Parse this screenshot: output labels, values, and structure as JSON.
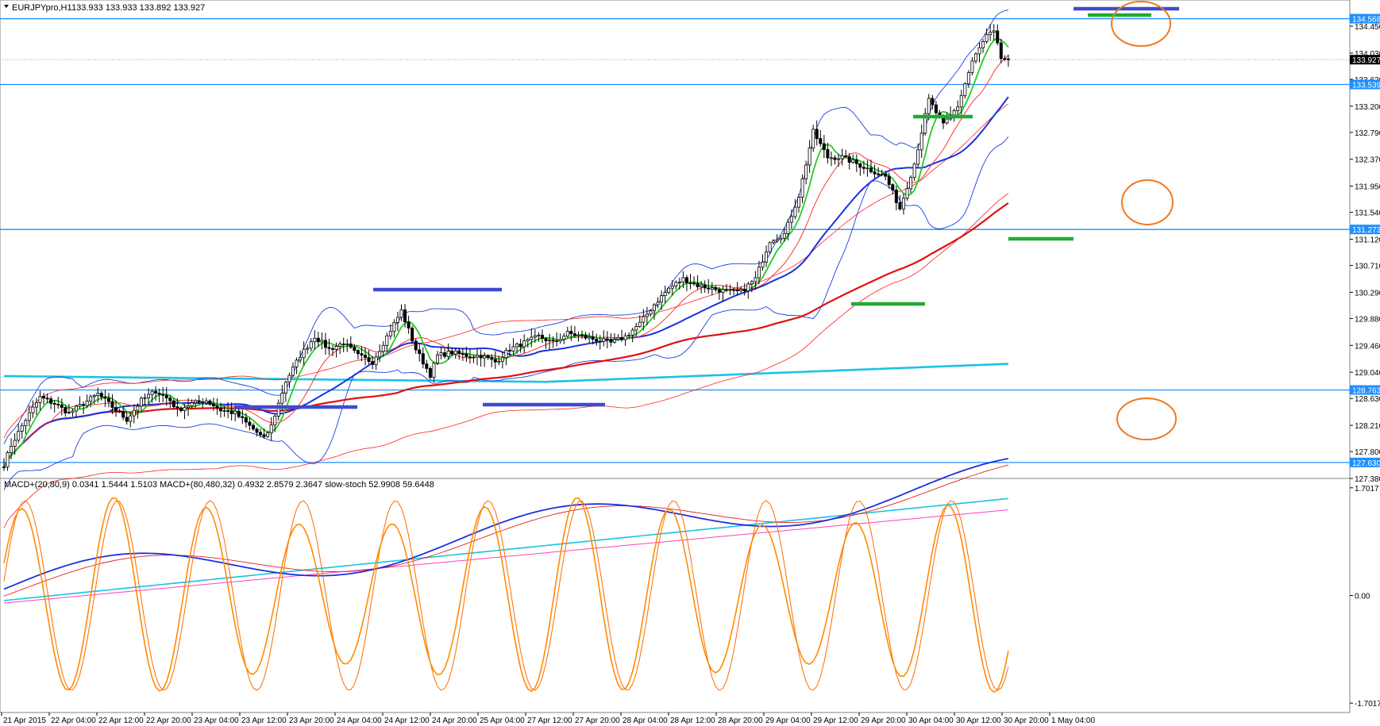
{
  "header": {
    "symbol": "EURJPYpro,H1",
    "ohlc": "133.933 133.933 133.892 133.927"
  },
  "indicator_header": "MACD+(20,80,9) 0.0341 1.5444 1.5103  MACD+(80,480,32) 0.4932 2.8579 2.3647  slow-stoch 52.9908 59.6448",
  "colors": {
    "up_candle": "#ffffff",
    "down_candle": "#000000",
    "hline": "#1e90ff",
    "bb": "#1a3fe0",
    "ma_fast": "#22cc22",
    "ma_red_thin": "#ff2020",
    "ma_blue": "#1a32e0",
    "ma_red": "#e01010",
    "ma_cyan": "#19c3e6",
    "env_red": "#ff2020",
    "stoch": "#ff8c00",
    "stoch_sig": "#ff6a00",
    "macd_blue": "#1f2fe0",
    "macd_red": "#e02020",
    "macd_cyan": "#19c3e6",
    "macd_magenta": "#ff40c0",
    "annot_green": "#22aa33",
    "annot_blue": "#3f4bd0",
    "annot_orange": "#f07820",
    "tag_bg": "#1e90ff",
    "current_tag_bg": "#000000"
  },
  "chart_data": [
    {
      "type": "candlestick",
      "title": "EURJPYpro,H1",
      "ylim": [
        127.38,
        134.86
      ],
      "price_axis_ticks": [
        "134.450",
        "134.030",
        "133.620",
        "133.200",
        "132.790",
        "132.370",
        "131.950",
        "131.540",
        "131.120",
        "130.710",
        "130.290",
        "129.880",
        "129.460",
        "129.040",
        "128.630",
        "128.210",
        "127.800",
        "127.380"
      ],
      "time_axis_labels": [
        "21 Apr 2015",
        "22 Apr 04:00",
        "22 Apr 12:00",
        "22 Apr 20:00",
        "23 Apr 04:00",
        "23 Apr 12:00",
        "23 Apr 20:00",
        "24 Apr 04:00",
        "24 Apr 12:00",
        "24 Apr 20:00",
        "25 Apr 04:00",
        "27 Apr 12:00",
        "27 Apr 20:00",
        "28 Apr 04:00",
        "28 Apr 12:00",
        "28 Apr 20:00",
        "29 Apr 04:00",
        "29 Apr 12:00",
        "29 Apr 20:00",
        "30 Apr 04:00",
        "30 Apr 12:00",
        "30 Apr 20:00",
        "1 May 04:00"
      ],
      "horizontal_levels": [
        "134.568",
        "133.539",
        "131.273",
        "128.763",
        "127.630"
      ],
      "current_price": "133.927",
      "close_anchors": [
        [
          0,
          127.6
        ],
        [
          2,
          127.9
        ],
        [
          6,
          128.3
        ],
        [
          10,
          128.65
        ],
        [
          14,
          128.55
        ],
        [
          18,
          128.4
        ],
        [
          22,
          128.55
        ],
        [
          26,
          128.7
        ],
        [
          30,
          128.5
        ],
        [
          34,
          128.3
        ],
        [
          38,
          128.6
        ],
        [
          42,
          128.75
        ],
        [
          46,
          128.6
        ],
        [
          48,
          128.45
        ],
        [
          52,
          128.55
        ],
        [
          56,
          128.6
        ],
        [
          60,
          128.45
        ],
        [
          64,
          128.4
        ],
        [
          68,
          128.2
        ],
        [
          72,
          128.0
        ],
        [
          74,
          128.2
        ],
        [
          78,
          128.9
        ],
        [
          82,
          129.3
        ],
        [
          86,
          129.6
        ],
        [
          90,
          129.4
        ],
        [
          94,
          129.5
        ],
        [
          98,
          129.3
        ],
        [
          102,
          129.2
        ],
        [
          106,
          129.6
        ],
        [
          110,
          130.0
        ],
        [
          114,
          129.4
        ],
        [
          118,
          129.0
        ],
        [
          120,
          129.3
        ],
        [
          124,
          129.35
        ],
        [
          128,
          129.3
        ],
        [
          132,
          129.3
        ],
        [
          136,
          129.2
        ],
        [
          140,
          129.4
        ],
        [
          144,
          129.5
        ],
        [
          148,
          129.6
        ],
        [
          152,
          129.5
        ],
        [
          156,
          129.65
        ],
        [
          160,
          129.6
        ],
        [
          164,
          129.55
        ],
        [
          168,
          129.5
        ],
        [
          172,
          129.6
        ],
        [
          176,
          129.8
        ],
        [
          180,
          130.1
        ],
        [
          184,
          130.35
        ],
        [
          188,
          130.5
        ],
        [
          192,
          130.4
        ],
        [
          196,
          130.35
        ],
        [
          200,
          130.3
        ],
        [
          204,
          130.3
        ],
        [
          208,
          130.5
        ],
        [
          212,
          131.1
        ],
        [
          216,
          131.2
        ],
        [
          220,
          131.8
        ],
        [
          224,
          132.8
        ],
        [
          228,
          132.4
        ],
        [
          232,
          132.4
        ],
        [
          236,
          132.3
        ],
        [
          240,
          132.2
        ],
        [
          244,
          132.1
        ],
        [
          248,
          131.6
        ],
        [
          252,
          132.3
        ],
        [
          256,
          133.3
        ],
        [
          260,
          132.9
        ],
        [
          264,
          133.2
        ],
        [
          268,
          133.9
        ],
        [
          272,
          134.3
        ],
        [
          274,
          134.35
        ],
        [
          276,
          133.95
        ],
        [
          278,
          133.93
        ]
      ]
    },
    {
      "type": "line",
      "title": "MACD+ / slow-stoch",
      "ylim": [
        -1.85,
        1.85
      ],
      "axis_ticks": [
        "1.7017",
        "0.00",
        "-1.7017"
      ],
      "current_values": {
        "macd_fast": [
          0.0341,
          1.5444,
          1.5103
        ],
        "macd_slow": [
          0.4932,
          2.8579,
          2.3647
        ],
        "slow_stoch": [
          52.9908,
          59.6448
        ]
      }
    }
  ]
}
